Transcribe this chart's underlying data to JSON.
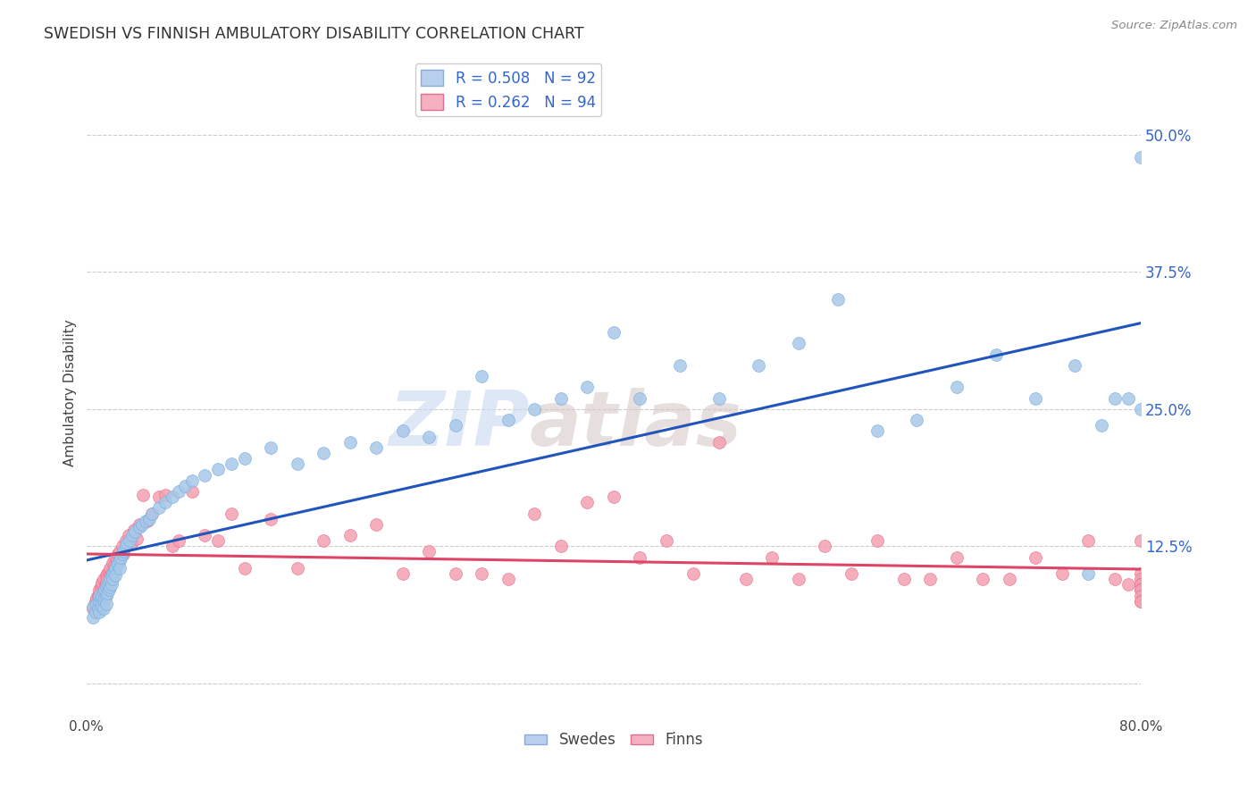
{
  "title": "SWEDISH VS FINNISH AMBULATORY DISABILITY CORRELATION CHART",
  "source": "Source: ZipAtlas.com",
  "ylabel": "Ambulatory Disability",
  "ytick_labels": [
    "",
    "12.5%",
    "25.0%",
    "37.5%",
    "50.0%"
  ],
  "ytick_values": [
    0.0,
    0.125,
    0.25,
    0.375,
    0.5
  ],
  "xlim": [
    0.0,
    0.8
  ],
  "ylim": [
    -0.03,
    0.56
  ],
  "swedes_color": "#a8c8e8",
  "finns_color": "#f4a0b0",
  "swedes_edge": "#7aace0",
  "finns_edge": "#e87090",
  "swedes_alpha": 0.85,
  "finns_alpha": 0.85,
  "marker_size": 10,
  "trend_swedes_color": "#2255bb",
  "trend_finns_color": "#dd4466",
  "trend_linewidth": 2.2,
  "background_color": "#ffffff",
  "grid_color": "#cccccc",
  "ytick_right_color": "#3366cc",
  "watermark_zip_color": "#c8d8f0",
  "watermark_atlas_color": "#ddc8c8",
  "swedes_x": [
    0.005,
    0.005,
    0.007,
    0.008,
    0.009,
    0.01,
    0.01,
    0.01,
    0.011,
    0.011,
    0.012,
    0.012,
    0.013,
    0.013,
    0.013,
    0.014,
    0.014,
    0.015,
    0.015,
    0.015,
    0.016,
    0.016,
    0.017,
    0.017,
    0.018,
    0.018,
    0.019,
    0.019,
    0.02,
    0.02,
    0.021,
    0.022,
    0.022,
    0.023,
    0.024,
    0.025,
    0.025,
    0.026,
    0.027,
    0.028,
    0.03,
    0.031,
    0.033,
    0.035,
    0.037,
    0.04,
    0.042,
    0.045,
    0.048,
    0.05,
    0.055,
    0.06,
    0.065,
    0.07,
    0.075,
    0.08,
    0.09,
    0.1,
    0.11,
    0.12,
    0.14,
    0.16,
    0.18,
    0.2,
    0.22,
    0.24,
    0.26,
    0.28,
    0.3,
    0.32,
    0.34,
    0.36,
    0.38,
    0.4,
    0.42,
    0.45,
    0.48,
    0.51,
    0.54,
    0.57,
    0.6,
    0.63,
    0.66,
    0.69,
    0.72,
    0.75,
    0.76,
    0.77,
    0.78,
    0.79,
    0.8,
    0.8
  ],
  "swedes_y": [
    0.06,
    0.07,
    0.065,
    0.072,
    0.068,
    0.075,
    0.08,
    0.065,
    0.078,
    0.072,
    0.08,
    0.07,
    0.082,
    0.075,
    0.068,
    0.085,
    0.078,
    0.088,
    0.08,
    0.072,
    0.09,
    0.082,
    0.092,
    0.085,
    0.095,
    0.088,
    0.098,
    0.09,
    0.1,
    0.095,
    0.102,
    0.105,
    0.098,
    0.108,
    0.11,
    0.112,
    0.105,
    0.115,
    0.118,
    0.12,
    0.125,
    0.128,
    0.13,
    0.135,
    0.138,
    0.142,
    0.145,
    0.148,
    0.15,
    0.155,
    0.16,
    0.165,
    0.17,
    0.175,
    0.18,
    0.185,
    0.19,
    0.195,
    0.2,
    0.205,
    0.215,
    0.2,
    0.21,
    0.22,
    0.215,
    0.23,
    0.225,
    0.235,
    0.28,
    0.24,
    0.25,
    0.26,
    0.27,
    0.32,
    0.26,
    0.29,
    0.26,
    0.29,
    0.31,
    0.35,
    0.23,
    0.24,
    0.27,
    0.3,
    0.26,
    0.29,
    0.1,
    0.235,
    0.26,
    0.26,
    0.25,
    0.48
  ],
  "finns_x": [
    0.005,
    0.006,
    0.007,
    0.008,
    0.009,
    0.01,
    0.01,
    0.011,
    0.012,
    0.012,
    0.013,
    0.013,
    0.014,
    0.015,
    0.015,
    0.016,
    0.016,
    0.017,
    0.018,
    0.018,
    0.019,
    0.02,
    0.021,
    0.022,
    0.023,
    0.024,
    0.025,
    0.026,
    0.027,
    0.028,
    0.03,
    0.032,
    0.034,
    0.036,
    0.038,
    0.04,
    0.043,
    0.046,
    0.05,
    0.055,
    0.06,
    0.065,
    0.07,
    0.08,
    0.09,
    0.1,
    0.11,
    0.12,
    0.14,
    0.16,
    0.18,
    0.2,
    0.22,
    0.24,
    0.26,
    0.28,
    0.3,
    0.32,
    0.34,
    0.36,
    0.38,
    0.4,
    0.42,
    0.44,
    0.46,
    0.48,
    0.5,
    0.52,
    0.54,
    0.56,
    0.58,
    0.6,
    0.62,
    0.64,
    0.66,
    0.68,
    0.7,
    0.72,
    0.74,
    0.76,
    0.78,
    0.79,
    0.8,
    0.8,
    0.8,
    0.8,
    0.8,
    0.8,
    0.8,
    0.8,
    0.8,
    0.8,
    0.8,
    0.8
  ],
  "finns_y": [
    0.068,
    0.072,
    0.075,
    0.078,
    0.08,
    0.082,
    0.085,
    0.088,
    0.09,
    0.092,
    0.082,
    0.095,
    0.088,
    0.098,
    0.092,
    0.1,
    0.095,
    0.102,
    0.098,
    0.105,
    0.1,
    0.11,
    0.108,
    0.115,
    0.112,
    0.118,
    0.12,
    0.115,
    0.125,
    0.118,
    0.13,
    0.135,
    0.128,
    0.14,
    0.132,
    0.145,
    0.172,
    0.148,
    0.155,
    0.17,
    0.172,
    0.125,
    0.13,
    0.175,
    0.135,
    0.13,
    0.155,
    0.105,
    0.15,
    0.105,
    0.13,
    0.135,
    0.145,
    0.1,
    0.12,
    0.1,
    0.1,
    0.095,
    0.155,
    0.125,
    0.165,
    0.17,
    0.115,
    0.13,
    0.1,
    0.22,
    0.095,
    0.115,
    0.095,
    0.125,
    0.1,
    0.13,
    0.095,
    0.095,
    0.115,
    0.095,
    0.095,
    0.115,
    0.1,
    0.13,
    0.095,
    0.09,
    0.13,
    0.1,
    0.095,
    0.09,
    0.09,
    0.09,
    0.09,
    0.085,
    0.085,
    0.08,
    0.075,
    0.075
  ]
}
